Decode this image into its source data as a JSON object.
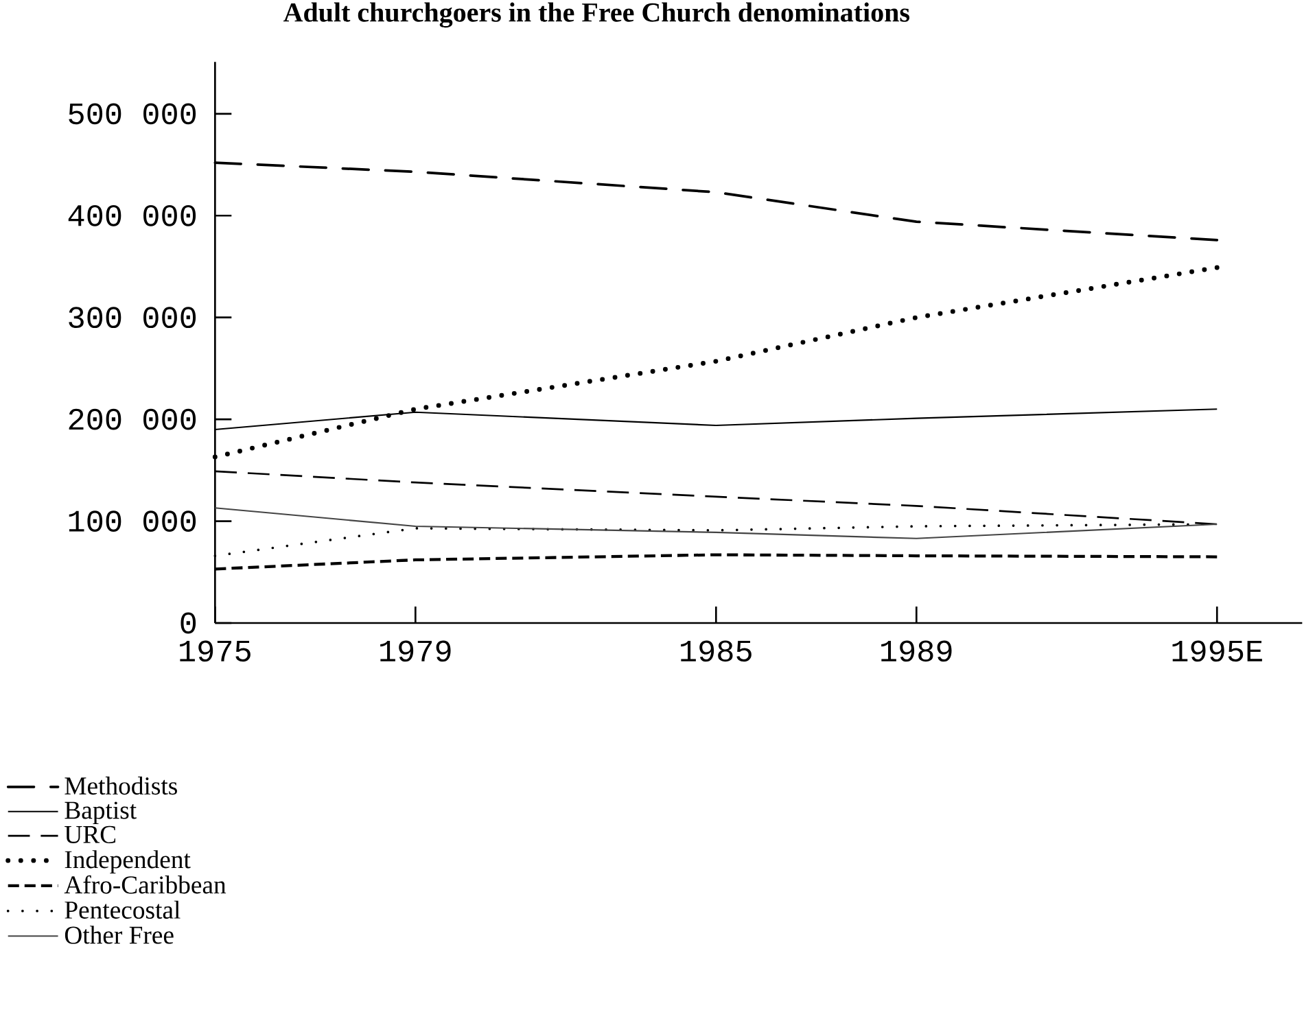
{
  "chart_data": {
    "type": "line",
    "title": "Adult churchgoers in the Free Church denominations",
    "x": [
      1975,
      1979,
      1985,
      1989,
      1995
    ],
    "xlim": [
      1975,
      1996.7
    ],
    "ylim": [
      0,
      551000
    ],
    "xticks": [
      1975,
      1979,
      1985,
      1989,
      {
        "value": 1995,
        "label": "1995E"
      }
    ],
    "yticks": [
      {
        "value": 0,
        "label": "0"
      },
      {
        "value": 100000,
        "label": "100 000"
      },
      {
        "value": 200000,
        "label": "200 000"
      },
      {
        "value": 300000,
        "label": "300 000"
      },
      {
        "value": 400000,
        "label": "400 000"
      },
      {
        "value": 500000,
        "label": "500 000"
      }
    ],
    "legend": "bottom left",
    "series": [
      {
        "name": "Methodists",
        "color": "#000000",
        "line_style": "dashdot",
        "values": [
          452000,
          443000,
          423000,
          394000,
          376000
        ]
      },
      {
        "name": "Baptist",
        "color": "#000000",
        "line_style": "solid",
        "values": [
          190000,
          207000,
          194000,
          201000,
          210000
        ]
      },
      {
        "name": "URC",
        "color": "#000000",
        "line_style": "dashed",
        "values": [
          149000,
          138000,
          124000,
          115000,
          97000
        ]
      },
      {
        "name": "Independent",
        "color": "#000000",
        "line_style": "dotted",
        "values": [
          163000,
          210000,
          257000,
          300000,
          349000
        ]
      },
      {
        "name": "Afro-Caribbean",
        "color": "#000000",
        "line_style": "densely dashed",
        "values": [
          53000,
          62000,
          67000,
          66000,
          65000
        ]
      },
      {
        "name": "Pentecostal",
        "color": "#000000",
        "line_style": "loosely dotted",
        "values": [
          66000,
          93000,
          91000,
          95000,
          97000
        ]
      },
      {
        "name": "Other Free",
        "color": "#444444",
        "line_style": "solid",
        "values": [
          113000,
          95000,
          89000,
          83000,
          97000
        ]
      }
    ]
  }
}
